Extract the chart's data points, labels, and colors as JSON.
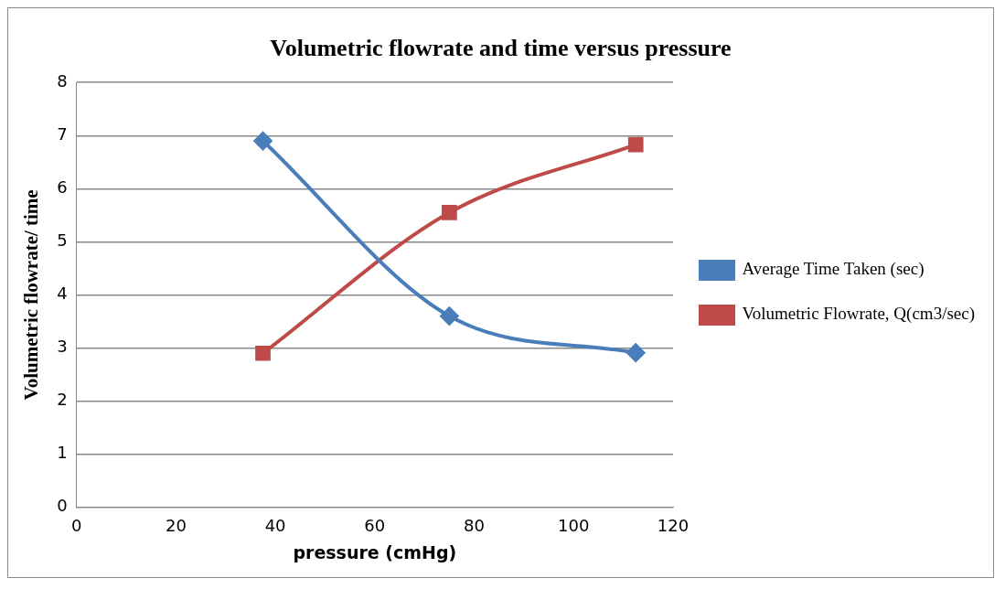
{
  "chart_data": {
    "type": "line",
    "title": "Volumetric flowrate and time versus pressure",
    "xlabel": "pressure (cmHg)",
    "ylabel": "Volumetric flowrate/ time",
    "x": [
      37.5,
      75,
      112.5
    ],
    "series": [
      {
        "name": "Average Time Taken (sec)",
        "color": "#4a7ebb",
        "values": [
          6.9,
          3.6,
          2.91
        ],
        "marker": "diamond"
      },
      {
        "name": "Volumetric Flowrate, Q(cm3/sec)",
        "color": "#be4b48",
        "values": [
          2.9,
          5.55,
          6.83
        ],
        "marker": "square"
      }
    ],
    "xlim": [
      0,
      120
    ],
    "xticks": [
      0,
      20,
      40,
      60,
      80,
      100,
      120
    ],
    "ylim": [
      0,
      8
    ],
    "yticks": [
      0,
      1,
      2,
      3,
      4,
      5,
      6,
      7,
      8
    ],
    "grid": "y",
    "legend": "right"
  }
}
